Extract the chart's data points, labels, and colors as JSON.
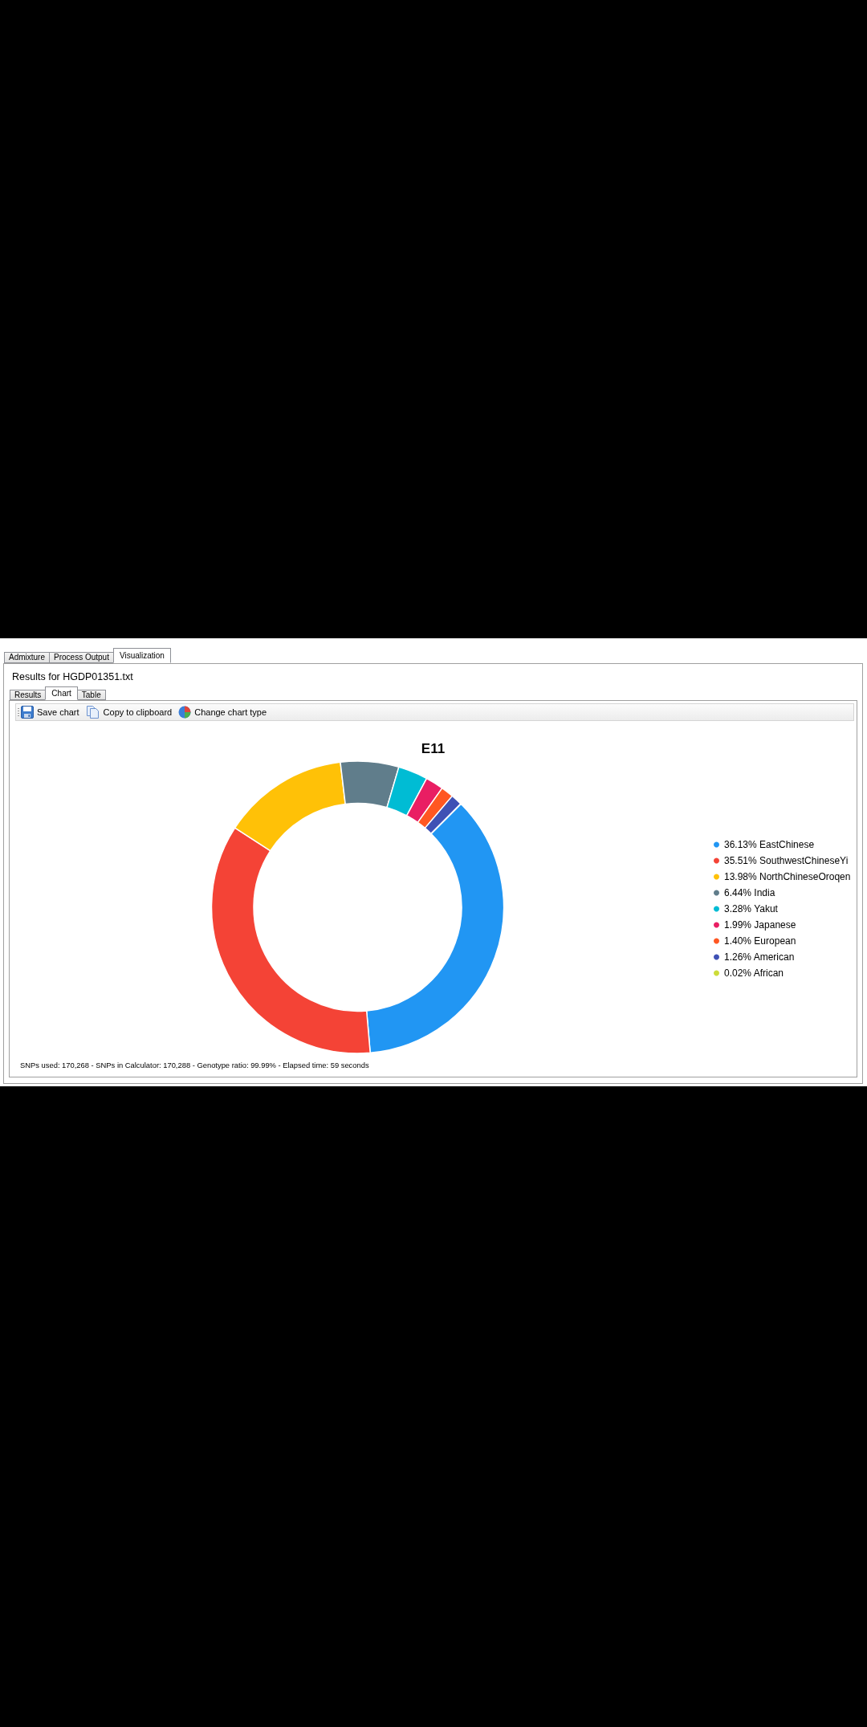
{
  "chart_data": {
    "type": "donut",
    "title": "E11",
    "subtitle": "Results for HGDP01351.txt",
    "categories": [
      "EastChinese",
      "SouthwestChineseYi",
      "NorthChineseOroqen",
      "India",
      "Yakut",
      "Japanese",
      "European",
      "American",
      "African"
    ],
    "values": [
      36.13,
      35.51,
      13.98,
      6.44,
      3.28,
      1.99,
      1.4,
      1.26,
      0.02
    ],
    "value_labels": [
      "36.13%",
      "35.51%",
      "13.98%",
      "6.44%",
      "3.28%",
      "1.99%",
      "1.40%",
      "1.26%",
      "0.02%"
    ],
    "colors": [
      "#2196f3",
      "#f44336",
      "#ffc107",
      "#607d8b",
      "#00bcd4",
      "#e91e63",
      "#ff5722",
      "#3f51b5",
      "#cddc39"
    ],
    "legend": "right",
    "annotations": [
      "Admixture",
      "Process Output",
      "Visualization",
      "Results",
      "Chart",
      "Table",
      "Save chart",
      "Copy to clipboard",
      "Change chart type",
      "SNPs used: 170,268 - SNPs in Calculator: 170,288 - Genotype ratio: 99.99% - Elapsed time: 59 seconds"
    ]
  }
}
